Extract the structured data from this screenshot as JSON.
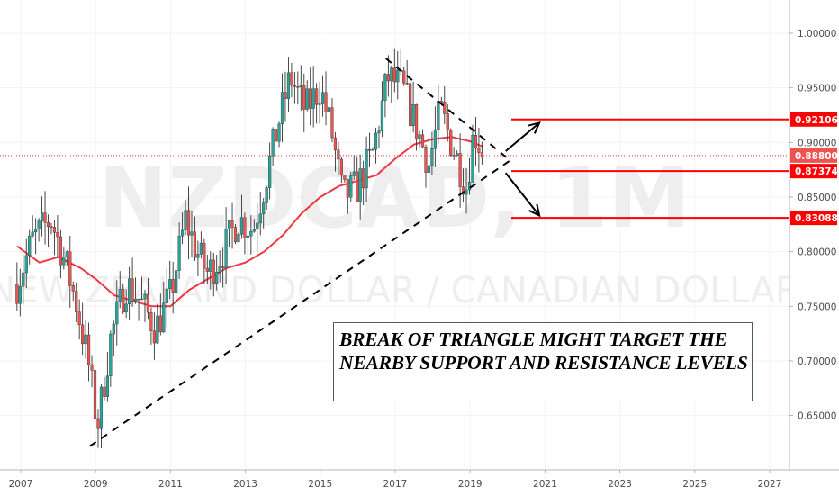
{
  "watermark": {
    "symbol": "NZDCAD, 1M",
    "description": "NEW ZEALAND DOLLAR / CANADIAN DOLLAR"
  },
  "annotation": {
    "text": "BREAK OF TRIANGLE MIGHT TARGET THE NEARBY SUPPORT AND RESISTANCE LEVELS"
  },
  "colors": {
    "up_candle": "#26a69a",
    "down_candle": "#ef5350",
    "moving_average": "#f23645",
    "level_line": "#ff0000",
    "trendline": "#000000",
    "axis_text": "#4a4a4a"
  },
  "chart_data": {
    "type": "candlestick",
    "timeframe": "1M",
    "x_axis_ticks": [
      "2007",
      "2009",
      "2011",
      "2013",
      "2015",
      "2017",
      "2019",
      "2021",
      "2023",
      "2025",
      "2027"
    ],
    "y_axis_ticks": [
      "1.00000",
      "0.95000",
      "0.90000",
      "0.85000",
      "0.80000",
      "0.75000",
      "0.70000",
      "0.65000"
    ],
    "ylim": [
      0.605,
      1.02
    ],
    "xlim": [
      2006.9,
      2027.7
    ],
    "current_price": {
      "label": "0.88800",
      "value": 0.888
    },
    "levels": [
      {
        "label": "0.92106",
        "value": 0.92106,
        "from": 2020.1
      },
      {
        "label": "0.87374",
        "value": 0.87374,
        "from": 2020.1
      },
      {
        "label": "0.83088",
        "value": 0.83088,
        "from": 2020.1
      }
    ],
    "trendlines": [
      {
        "name": "ascending-support",
        "points": [
          [
            2008.85,
            0.622
          ],
          [
            2020.05,
            0.883
          ]
        ]
      },
      {
        "name": "descending-resistance",
        "points": [
          [
            2016.75,
            0.977
          ],
          [
            2020.05,
            0.884
          ]
        ]
      }
    ],
    "arrows": [
      {
        "from": [
          2019.95,
          0.892
        ],
        "to": [
          2020.85,
          0.918
        ]
      },
      {
        "from": [
          2019.95,
          0.872
        ],
        "to": [
          2020.85,
          0.833
        ]
      }
    ],
    "price_path": [
      [
        2006.9,
        0.77
      ],
      [
        2007.3,
        0.81
      ],
      [
        2007.8,
        0.83
      ],
      [
        2008.2,
        0.79
      ],
      [
        2008.5,
        0.75
      ],
      [
        2008.8,
        0.7
      ],
      [
        2009.05,
        0.64
      ],
      [
        2009.4,
        0.72
      ],
      [
        2009.8,
        0.77
      ],
      [
        2010.1,
        0.76
      ],
      [
        2010.6,
        0.73
      ],
      [
        2011.0,
        0.76
      ],
      [
        2011.4,
        0.83
      ],
      [
        2011.7,
        0.8
      ],
      [
        2012.0,
        0.78
      ],
      [
        2012.4,
        0.8
      ],
      [
        2012.8,
        0.83
      ],
      [
        2013.2,
        0.82
      ],
      [
        2013.5,
        0.86
      ],
      [
        2013.9,
        0.92
      ],
      [
        2014.2,
        0.96
      ],
      [
        2014.6,
        0.93
      ],
      [
        2015.0,
        0.95
      ],
      [
        2015.3,
        0.91
      ],
      [
        2015.6,
        0.85
      ],
      [
        2016.0,
        0.86
      ],
      [
        2016.4,
        0.89
      ],
      [
        2016.8,
        0.96
      ],
      [
        2017.2,
        0.95
      ],
      [
        2017.6,
        0.91
      ],
      [
        2017.9,
        0.88
      ],
      [
        2018.2,
        0.93
      ],
      [
        2018.6,
        0.89
      ],
      [
        2018.9,
        0.86
      ],
      [
        2019.1,
        0.91
      ],
      [
        2019.35,
        0.89
      ]
    ],
    "moving_average": [
      [
        2006.9,
        0.805
      ],
      [
        2007.5,
        0.79
      ],
      [
        2008.0,
        0.795
      ],
      [
        2008.6,
        0.785
      ],
      [
        2009.0,
        0.775
      ],
      [
        2009.5,
        0.76
      ],
      [
        2010.0,
        0.755
      ],
      [
        2010.5,
        0.75
      ],
      [
        2011.0,
        0.75
      ],
      [
        2011.5,
        0.765
      ],
      [
        2012.0,
        0.775
      ],
      [
        2012.5,
        0.785
      ],
      [
        2013.0,
        0.79
      ],
      [
        2013.5,
        0.8
      ],
      [
        2014.0,
        0.815
      ],
      [
        2014.5,
        0.835
      ],
      [
        2015.0,
        0.85
      ],
      [
        2015.5,
        0.86
      ],
      [
        2016.0,
        0.865
      ],
      [
        2016.5,
        0.87
      ],
      [
        2017.0,
        0.885
      ],
      [
        2017.5,
        0.898
      ],
      [
        2018.0,
        0.903
      ],
      [
        2018.5,
        0.905
      ],
      [
        2019.0,
        0.901
      ],
      [
        2019.35,
        0.896
      ]
    ]
  }
}
